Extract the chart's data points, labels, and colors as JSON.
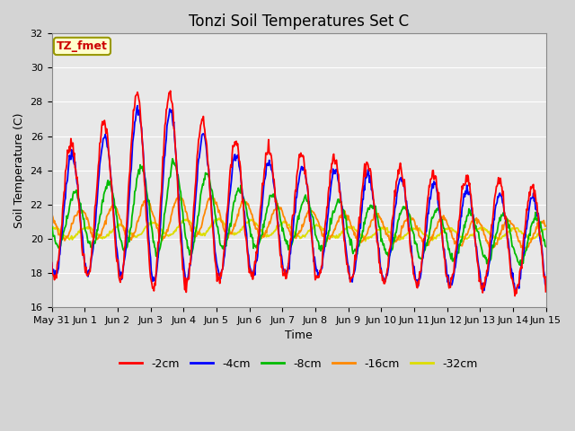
{
  "title": "Tonzi Soil Temperatures Set C",
  "xlabel": "Time",
  "ylabel": "Soil Temperature (C)",
  "ylim": [
    16,
    32
  ],
  "xlim_days": [
    0,
    15
  ],
  "xtick_labels": [
    "May 31",
    "Jun 1",
    "Jun 2",
    "Jun 3",
    "Jun 4",
    "Jun 5",
    "Jun 6",
    "Jun 7",
    "Jun 8",
    "Jun 9",
    "Jun 10",
    "Jun 11",
    "Jun 12",
    "Jun 13",
    "Jun 14",
    "Jun 15"
  ],
  "ytick_values": [
    16,
    18,
    20,
    22,
    24,
    26,
    28,
    30,
    32
  ],
  "series_colors": [
    "#ff0000",
    "#0000ff",
    "#00bb00",
    "#ff8800",
    "#dddd00"
  ],
  "series_labels": [
    "-2cm",
    "-4cm",
    "-8cm",
    "-16cm",
    "-32cm"
  ],
  "annotation_text": "TZ_fmet",
  "annotation_bg": "#ffffcc",
  "annotation_border": "#999900",
  "fig_bg": "#d4d4d4",
  "plot_bg": "#e8e8e8",
  "grid_color": "#ffffff",
  "title_fontsize": 12,
  "axis_fontsize": 9,
  "tick_fontsize": 8,
  "legend_fontsize": 9,
  "line_width": 1.3
}
